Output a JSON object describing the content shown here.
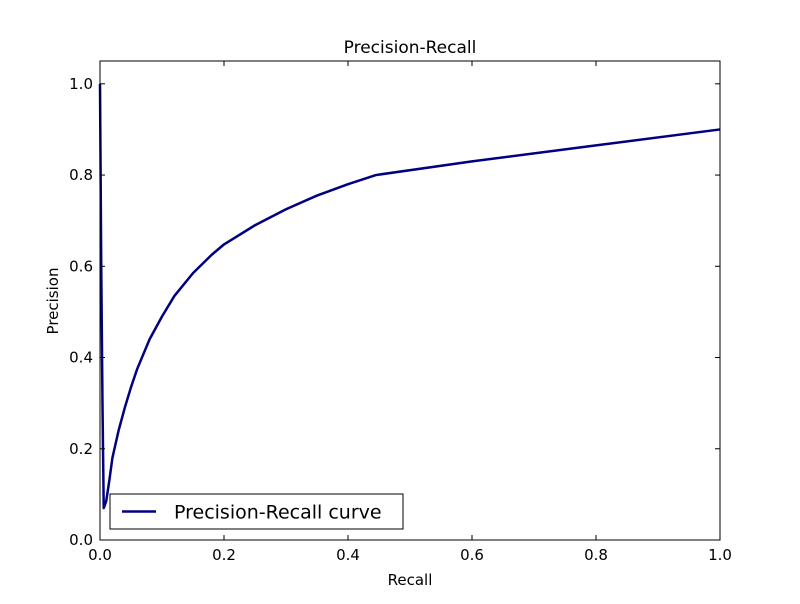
{
  "chart_data": {
    "type": "line",
    "title": "Precision-Recall",
    "xlabel": "Recall",
    "ylabel": "Precision",
    "xlim": [
      0.0,
      1.0
    ],
    "ylim": [
      0.0,
      1.05
    ],
    "xticks": [
      0.0,
      0.2,
      0.4,
      0.6,
      0.8,
      1.0
    ],
    "xtick_labels": [
      "0.0",
      "0.2",
      "0.4",
      "0.6",
      "0.8",
      "1.0"
    ],
    "yticks": [
      0.0,
      0.2,
      0.4,
      0.6,
      0.8,
      1.0
    ],
    "ytick_labels": [
      "0.0",
      "0.2",
      "0.4",
      "0.6",
      "0.8",
      "1.0"
    ],
    "grid": false,
    "legend": "lower-left",
    "series": [
      {
        "name": "Precision-Recall curve",
        "color": "#000080",
        "points": [
          [
            0.0,
            1.0
          ],
          [
            0.002,
            0.6
          ],
          [
            0.004,
            0.3
          ],
          [
            0.006,
            0.07
          ],
          [
            0.01,
            0.085
          ],
          [
            0.015,
            0.13
          ],
          [
            0.02,
            0.18
          ],
          [
            0.03,
            0.24
          ],
          [
            0.04,
            0.29
          ],
          [
            0.05,
            0.335
          ],
          [
            0.06,
            0.375
          ],
          [
            0.08,
            0.44
          ],
          [
            0.1,
            0.49
          ],
          [
            0.12,
            0.535
          ],
          [
            0.15,
            0.585
          ],
          [
            0.18,
            0.625
          ],
          [
            0.2,
            0.648
          ],
          [
            0.25,
            0.69
          ],
          [
            0.3,
            0.725
          ],
          [
            0.35,
            0.755
          ],
          [
            0.4,
            0.78
          ],
          [
            0.445,
            0.8
          ],
          [
            0.6,
            0.83
          ],
          [
            0.8,
            0.865
          ],
          [
            1.0,
            0.9
          ]
        ]
      }
    ]
  }
}
